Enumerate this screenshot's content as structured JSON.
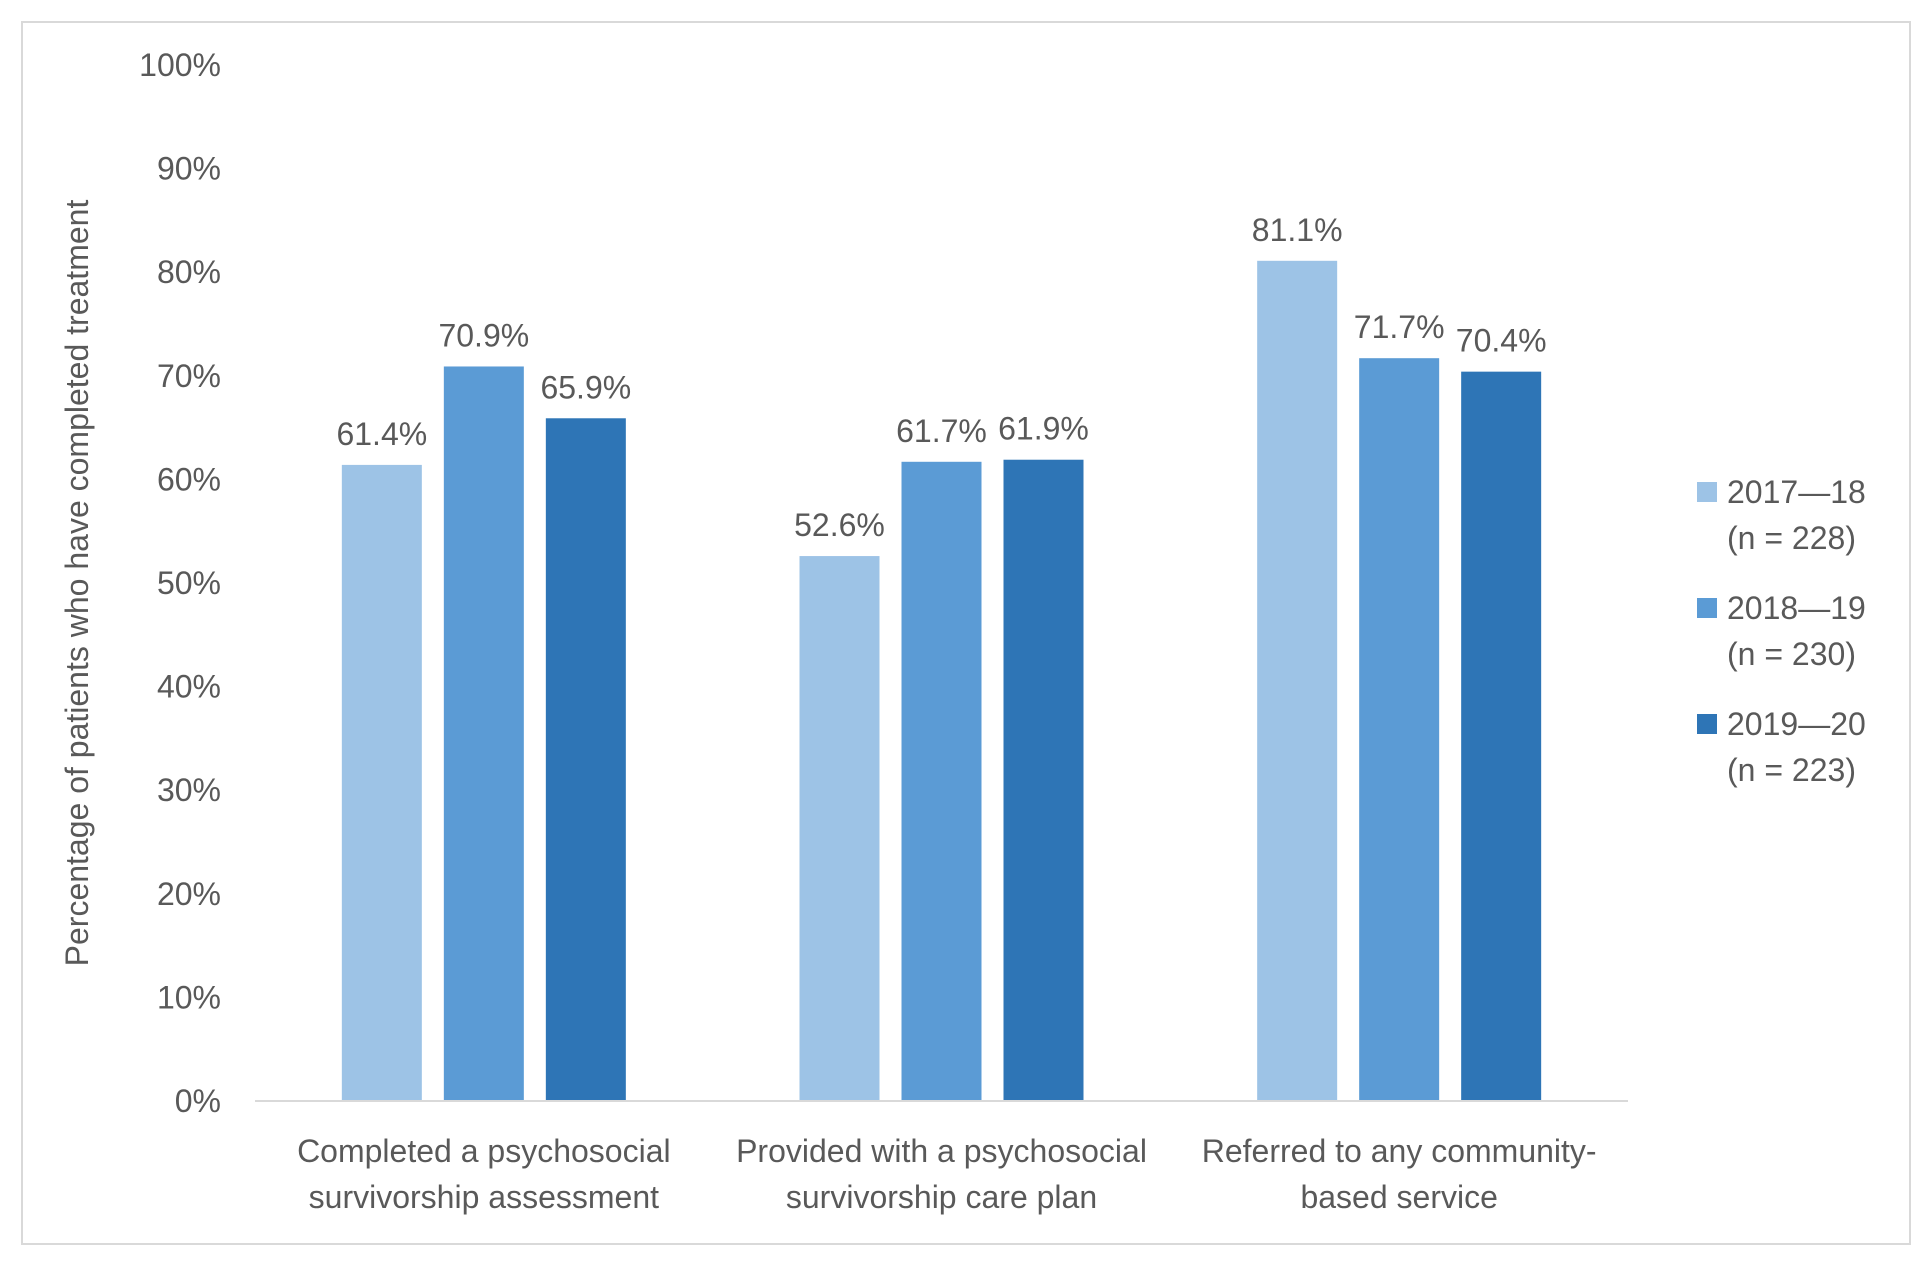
{
  "chart_data": {
    "type": "bar",
    "title": "",
    "ylabel": "Percentage of patients who have completed treatment",
    "xlabel": "",
    "ylim": [
      0,
      100
    ],
    "yticks": [
      "0%",
      "10%",
      "20%",
      "30%",
      "40%",
      "50%",
      "60%",
      "70%",
      "80%",
      "90%",
      "100%"
    ],
    "categories": [
      [
        "Completed a psychosocial",
        "survivorship assessment"
      ],
      [
        "Provided with a psychosocial",
        "survivorship care plan"
      ],
      [
        "Referred to any community-",
        "based service"
      ]
    ],
    "series": [
      {
        "name": "2017—18",
        "n_label": "(n = 228)",
        "color": "#9DC3E6",
        "values": [
          61.4,
          52.6,
          81.1
        ],
        "labels": [
          "61.4%",
          "52.6%",
          "81.1%"
        ]
      },
      {
        "name": "2018—19",
        "n_label": "(n = 230)",
        "color": "#5B9BD5",
        "values": [
          70.9,
          61.7,
          71.7
        ],
        "labels": [
          "70.9%",
          "61.7%",
          "71.7%"
        ]
      },
      {
        "name": "2019—20",
        "n_label": "(n = 223)",
        "color": "#2E75B6",
        "values": [
          65.9,
          61.9,
          70.4
        ],
        "labels": [
          "65.9%",
          "61.9%",
          "70.4%"
        ]
      }
    ],
    "legend_position": "right",
    "grid": false
  },
  "colors": {
    "axis": "#D9D9D9",
    "text": "#595959",
    "frame": "#D9D9D9"
  }
}
